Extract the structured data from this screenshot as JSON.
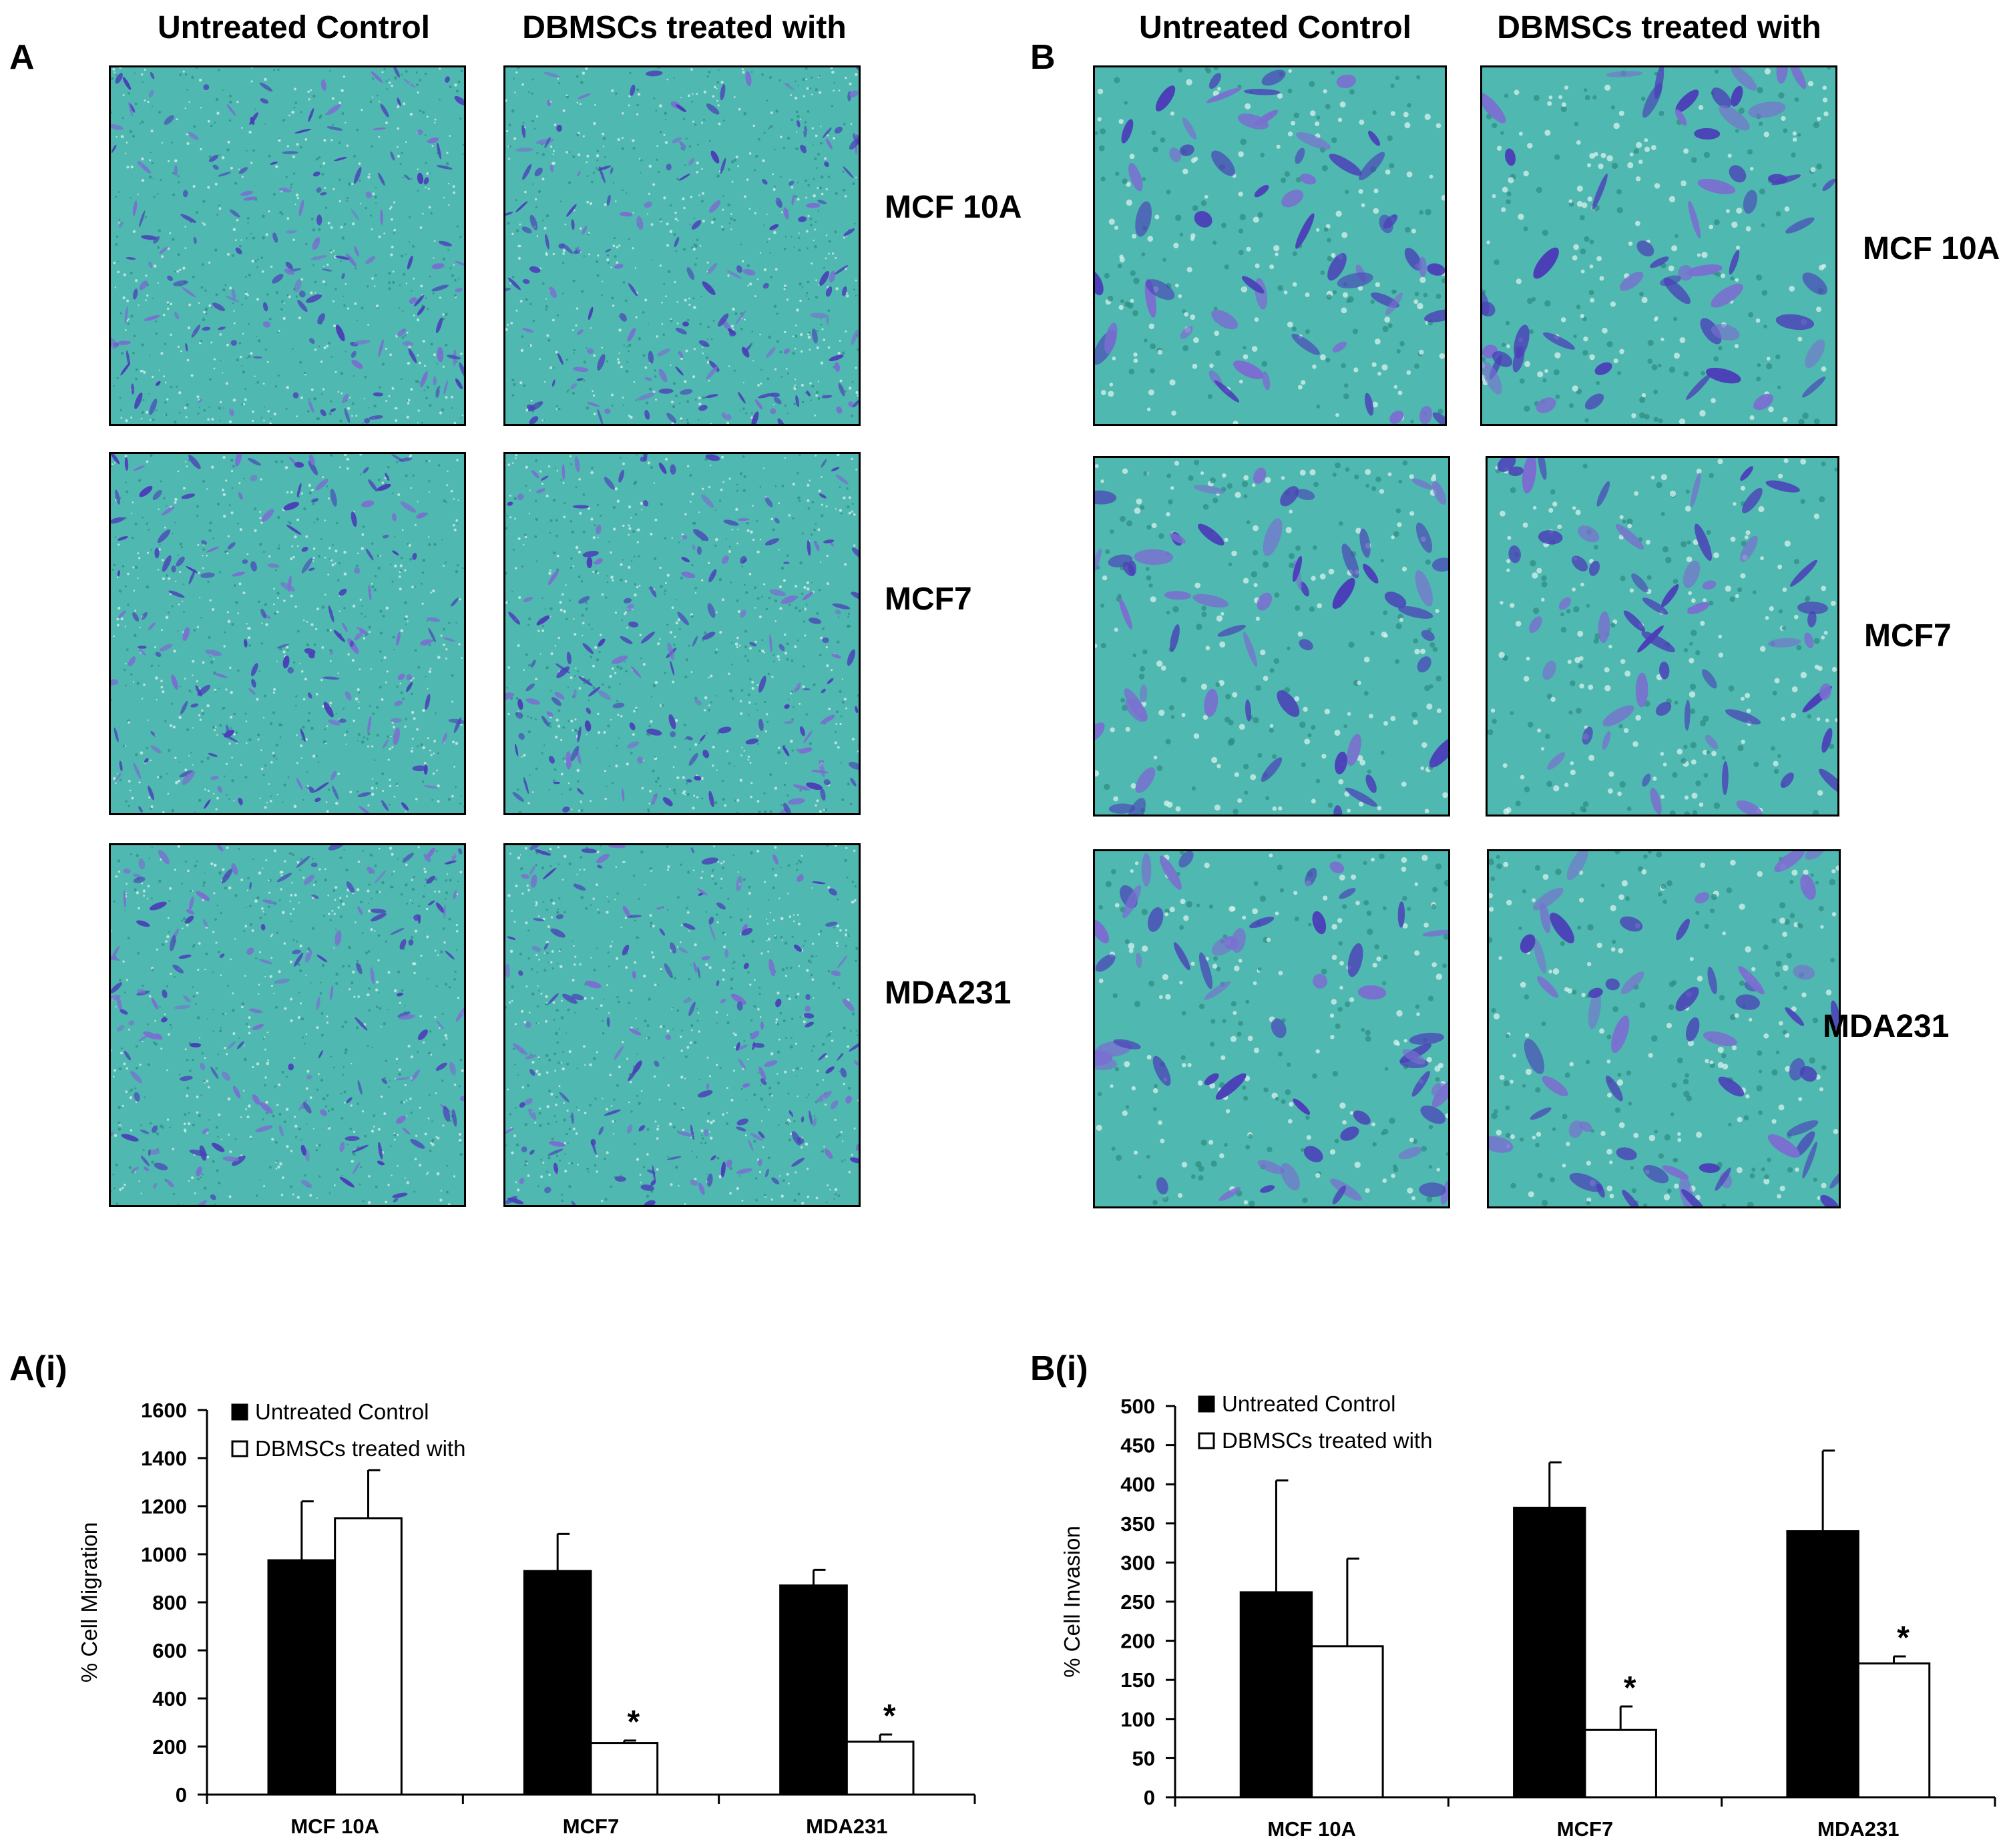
{
  "panels": {
    "A": {
      "letter": "A",
      "col_headers": [
        "Untreated Control",
        "DBMSCs treated with"
      ],
      "row_labels": [
        "MCF 10A",
        "MCF7",
        "MDA231"
      ]
    },
    "B": {
      "letter": "B",
      "col_headers": [
        "Untreated Control",
        "DBMSCs treated with"
      ],
      "row_labels": [
        "MCF 10A",
        "MCF7",
        "MDA231"
      ]
    }
  },
  "colors": {
    "stain_bg": "#4fb8b0",
    "stain_cell": "#4b3fb8",
    "stain_cell_light": "#7a6fd0",
    "bar_control": "#000000",
    "bar_treated": "#ffffff"
  },
  "chart_data": [
    {
      "panel": "A(i)",
      "type": "bar",
      "title": "",
      "ylabel": "% Cell Migration",
      "xlabel": "",
      "categories": [
        "MCF 10A",
        "MCF7",
        "MDA231"
      ],
      "ylim": [
        0,
        1600
      ],
      "yticks": [
        0,
        200,
        400,
        600,
        800,
        1000,
        1200,
        1400,
        1600
      ],
      "series": [
        {
          "name": "Untreated Control",
          "values": [
            975,
            930,
            870
          ],
          "errors": [
            245,
            155,
            65
          ],
          "fill": "#000000"
        },
        {
          "name": "DBMSCs treated with",
          "values": [
            1150,
            215,
            220
          ],
          "errors": [
            200,
            10,
            30
          ],
          "fill": "#ffffff"
        }
      ],
      "annotations": [
        {
          "text": "*",
          "series": 1,
          "category": 1
        },
        {
          "text": "*",
          "series": 1,
          "category": 2
        }
      ],
      "legend": "top-left"
    },
    {
      "panel": "B(i)",
      "type": "bar",
      "title": "",
      "ylabel": "% Cell Invasion",
      "xlabel": "",
      "categories": [
        "MCF 10A",
        "MCF7",
        "MDA231"
      ],
      "ylim": [
        0,
        500
      ],
      "yticks": [
        0,
        50,
        100,
        150,
        200,
        250,
        300,
        350,
        400,
        450,
        500
      ],
      "series": [
        {
          "name": "Untreated Control",
          "values": [
            262,
            370,
            340
          ],
          "errors": [
            143,
            58,
            103
          ],
          "fill": "#000000"
        },
        {
          "name": "DBMSCs treated with",
          "values": [
            193,
            86,
            171
          ],
          "errors": [
            112,
            30,
            9
          ],
          "fill": "#ffffff"
        }
      ],
      "annotations": [
        {
          "text": "*",
          "series": 1,
          "category": 1
        },
        {
          "text": "*",
          "series": 1,
          "category": 2
        }
      ],
      "legend": "top-left"
    }
  ]
}
